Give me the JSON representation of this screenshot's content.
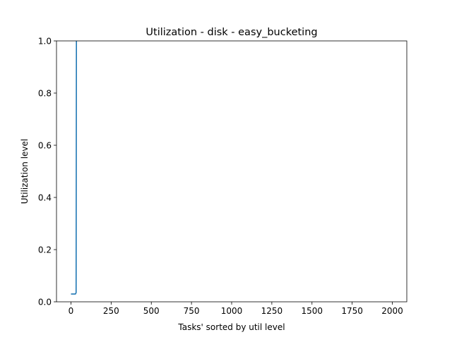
{
  "chart_data": {
    "type": "line",
    "title": "Utilization - disk - easy_bucketing",
    "xlabel": "Tasks' sorted by util level",
    "ylabel": "Utilization level",
    "xlim": [
      -90,
      2090
    ],
    "ylim": [
      0,
      1
    ],
    "xticks": [
      0,
      250,
      500,
      750,
      1000,
      1250,
      1500,
      1750,
      2000
    ],
    "xtick_labels": [
      "0",
      "250",
      "500",
      "750",
      "1000",
      "1250",
      "1500",
      "1750",
      "2000"
    ],
    "yticks": [
      0,
      0.2,
      0.4,
      0.6,
      0.8,
      1.0
    ],
    "ytick_labels": [
      "0.0",
      "0.2",
      "0.4",
      "0.6",
      "0.8",
      "1.0"
    ],
    "grid": false,
    "legend": "none",
    "series": [
      {
        "color": "#1f77b4",
        "x": [
          0,
          10,
          20,
          28,
          32,
          33,
          34,
          36
        ],
        "y": [
          0.03,
          0.03,
          0.03,
          0.03,
          0.035,
          0.5,
          1.0,
          1.0
        ]
      }
    ]
  }
}
